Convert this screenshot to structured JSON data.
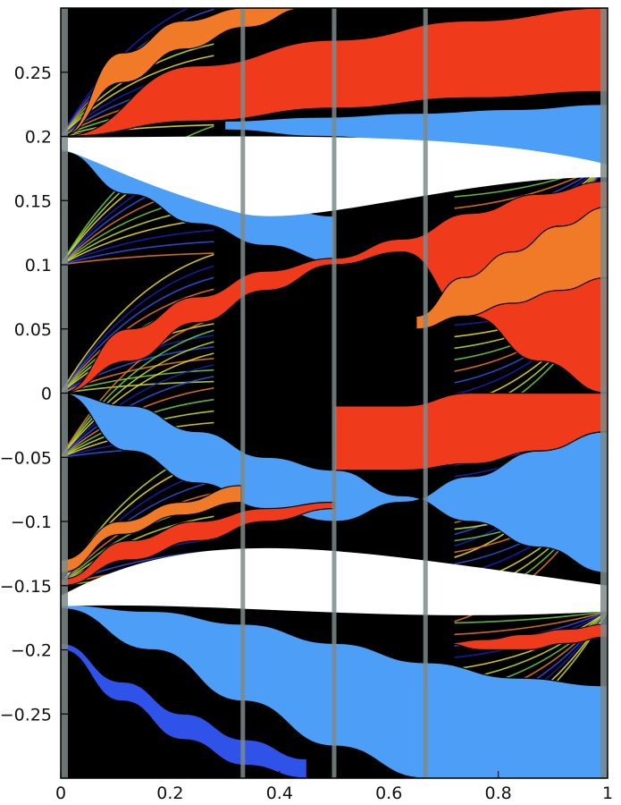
{
  "chart_data": {
    "type": "area",
    "title": "",
    "xlabel": "",
    "ylabel": "",
    "xlim": [
      0,
      1
    ],
    "ylim": [
      -0.3,
      0.3
    ],
    "grid": false,
    "legend": "none",
    "x_ticks": [
      {
        "value": 0,
        "label": "0"
      },
      {
        "value": 0.2,
        "label": "0.2"
      },
      {
        "value": 0.4,
        "label": "0.4"
      },
      {
        "value": 0.6,
        "label": "0.6"
      },
      {
        "value": 0.8,
        "label": "0.8"
      },
      {
        "value": 1,
        "label": "1"
      }
    ],
    "y_ticks": [
      {
        "value": 0.25,
        "label": "0.25"
      },
      {
        "value": 0.2,
        "label": "0.2"
      },
      {
        "value": 0.15,
        "label": "0.15"
      },
      {
        "value": 0.1,
        "label": "0.1"
      },
      {
        "value": 0.05,
        "label": "0.05"
      },
      {
        "value": 0,
        "label": "0"
      },
      {
        "value": -0.05,
        "label": "−0.05"
      },
      {
        "value": -0.1,
        "label": "−0.1"
      },
      {
        "value": -0.15,
        "label": "−0.15"
      },
      {
        "value": -0.2,
        "label": "−0.2"
      },
      {
        "value": -0.25,
        "label": "−0.25"
      }
    ],
    "colors": {
      "red": "#f03a1c",
      "orange": "#f07a28",
      "yellow": "#f2e52c",
      "light_blue": "#4d9ef7",
      "blue": "#2f52e8",
      "dark_blue": "#1a20b8",
      "background": "#000000",
      "gap": "#ffffff",
      "divider": "#7d8a8a"
    },
    "regions": [
      {
        "color": "red",
        "x": [
          0,
          1
        ],
        "lower": [
          0.2,
          0.235
        ],
        "upper": [
          0.2,
          0.3
        ],
        "lower_curve": [
          0.2,
          0.212,
          0.222,
          0.23,
          0.235
        ],
        "upper_curve": [
          0.2,
          0.255,
          0.275,
          0.29,
          0.3
        ]
      },
      {
        "color": "orange",
        "x": [
          0,
          0.45
        ],
        "lower_curve": [
          0.2,
          0.242,
          0.268,
          0.285,
          0.3
        ],
        "upper_curve": [
          0.2,
          0.265,
          0.29,
          0.3,
          0.3
        ]
      },
      {
        "color": "light_blue",
        "x": [
          0.3,
          1
        ],
        "lower_curve": [
          0.205,
          0.2,
          0.195,
          0.185,
          0.175
        ],
        "upper_curve": [
          0.212,
          0.215,
          0.218,
          0.221,
          0.225
        ]
      },
      {
        "color": "light_blue",
        "x": [
          0,
          0.5
        ],
        "lower_curve": [
          0.188,
          0.155,
          0.132,
          0.115,
          0.102
        ],
        "upper_curve": [
          0.192,
          0.178,
          0.162,
          0.148,
          0.138
        ]
      },
      {
        "color": "red",
        "x": [
          0,
          1
        ],
        "lower_curve": [
          0.0,
          0.025,
          0.055,
          0.08,
          0.1,
          0.11,
          0.06,
          0.025,
          0.0
        ],
        "upper_curve": [
          0.0,
          0.05,
          0.075,
          0.095,
          0.105,
          0.12,
          0.14,
          0.155,
          0.165
        ]
      },
      {
        "color": "orange",
        "x": [
          0.65,
          1
        ],
        "lower_curve": [
          0.05,
          0.06,
          0.07,
          0.08,
          0.09
        ],
        "upper_curve": [
          0.06,
          0.09,
          0.11,
          0.13,
          0.145
        ]
      },
      {
        "color": "light_blue",
        "x": [
          0,
          1
        ],
        "lower_curve": [
          0.0,
          -0.045,
          -0.07,
          -0.09,
          -0.1,
          -0.085,
          -0.065,
          -0.045,
          -0.03
        ],
        "upper_curve": [
          0.0,
          -0.01,
          -0.03,
          -0.05,
          -0.06,
          -0.08,
          -0.1,
          -0.12,
          -0.14
        ]
      },
      {
        "color": "red",
        "x": [
          0.5,
          1
        ],
        "lower_curve": [
          -0.06,
          -0.06,
          -0.055,
          -0.045,
          -0.03
        ],
        "upper_curve": [
          -0.01,
          -0.01,
          0.0,
          0.0,
          0.0
        ]
      },
      {
        "color": "red",
        "x": [
          0,
          0.5
        ],
        "lower_curve": [
          -0.15,
          -0.13,
          -0.115,
          -0.1,
          -0.09
        ],
        "upper_curve": [
          -0.145,
          -0.115,
          -0.1,
          -0.09,
          -0.085
        ]
      },
      {
        "color": "orange",
        "x": [
          0,
          0.33
        ],
        "lower_curve": [
          -0.14,
          -0.11,
          -0.095,
          -0.085
        ],
        "upper_curve": [
          -0.13,
          -0.1,
          -0.085,
          -0.072
        ]
      },
      {
        "color": "light_blue",
        "x": [
          0,
          1
        ],
        "lower_curve": [
          -0.168,
          -0.2,
          -0.24,
          -0.275,
          -0.3,
          -0.3,
          -0.3
        ],
        "upper_curve": [
          -0.165,
          -0.17,
          -0.18,
          -0.195,
          -0.21,
          -0.222,
          -0.228
        ]
      },
      {
        "color": "red",
        "x": [
          0.7,
          1
        ],
        "lower_curve": [
          -0.195,
          -0.2,
          -0.2,
          -0.195,
          -0.19
        ],
        "upper_curve": [
          -0.195,
          -0.192,
          -0.188,
          -0.184,
          -0.18
        ]
      },
      {
        "color": "blue",
        "x": [
          0,
          0.45
        ],
        "lower_curve": [
          -0.2,
          -0.24,
          -0.27,
          -0.29,
          -0.3
        ],
        "upper_curve": [
          -0.195,
          -0.225,
          -0.25,
          -0.27,
          -0.285
        ]
      }
    ],
    "dividers_x": [
      0,
      0.333,
      0.5,
      0.667,
      1
    ]
  }
}
